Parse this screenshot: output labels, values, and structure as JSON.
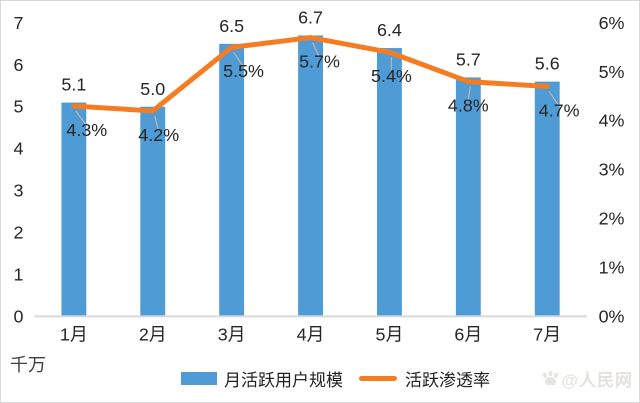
{
  "chart_data": {
    "type": "bar+line",
    "categories": [
      "1月",
      "2月",
      "3月",
      "4月",
      "5月",
      "6月",
      "7月"
    ],
    "series": [
      {
        "name": "月活跃用户规模",
        "chart": "bar",
        "axis": "left",
        "color": "#4e9bd5",
        "values": [
          5.1,
          5.0,
          6.5,
          6.7,
          6.4,
          5.7,
          5.6
        ],
        "data_labels": [
          "5.1",
          "5.0",
          "6.5",
          "6.7",
          "6.4",
          "5.7",
          "5.6"
        ]
      },
      {
        "name": "活跃渗透率",
        "chart": "line",
        "axis": "right",
        "color": "#f57c21",
        "values": [
          4.3,
          4.2,
          5.5,
          5.7,
          5.4,
          4.8,
          4.7
        ],
        "data_labels": [
          "4.3%",
          "4.2%",
          "5.5%",
          "5.7%",
          "5.4%",
          "4.8%",
          "4.7%"
        ],
        "label_offsets_x": [
          13,
          6,
          12,
          9,
          2,
          0,
          12
        ]
      }
    ],
    "left_axis": {
      "min": 0,
      "max": 7,
      "step": 1,
      "ticks": [
        "0",
        "1",
        "2",
        "3",
        "4",
        "5",
        "6",
        "7"
      ],
      "unit_label": "千万"
    },
    "right_axis": {
      "min": 0,
      "max": 6,
      "step": 1,
      "ticks": [
        "0%",
        "1%",
        "2%",
        "3%",
        "4%",
        "5%",
        "6%"
      ]
    },
    "grid": false,
    "legend_position": "bottom",
    "axis_line_color": "#d9d9d9",
    "leader_line_color": "#c4b4aa",
    "label_color": "#262626"
  },
  "watermark": {
    "icon": "baidu-paw-icon",
    "text": "@人民网"
  }
}
